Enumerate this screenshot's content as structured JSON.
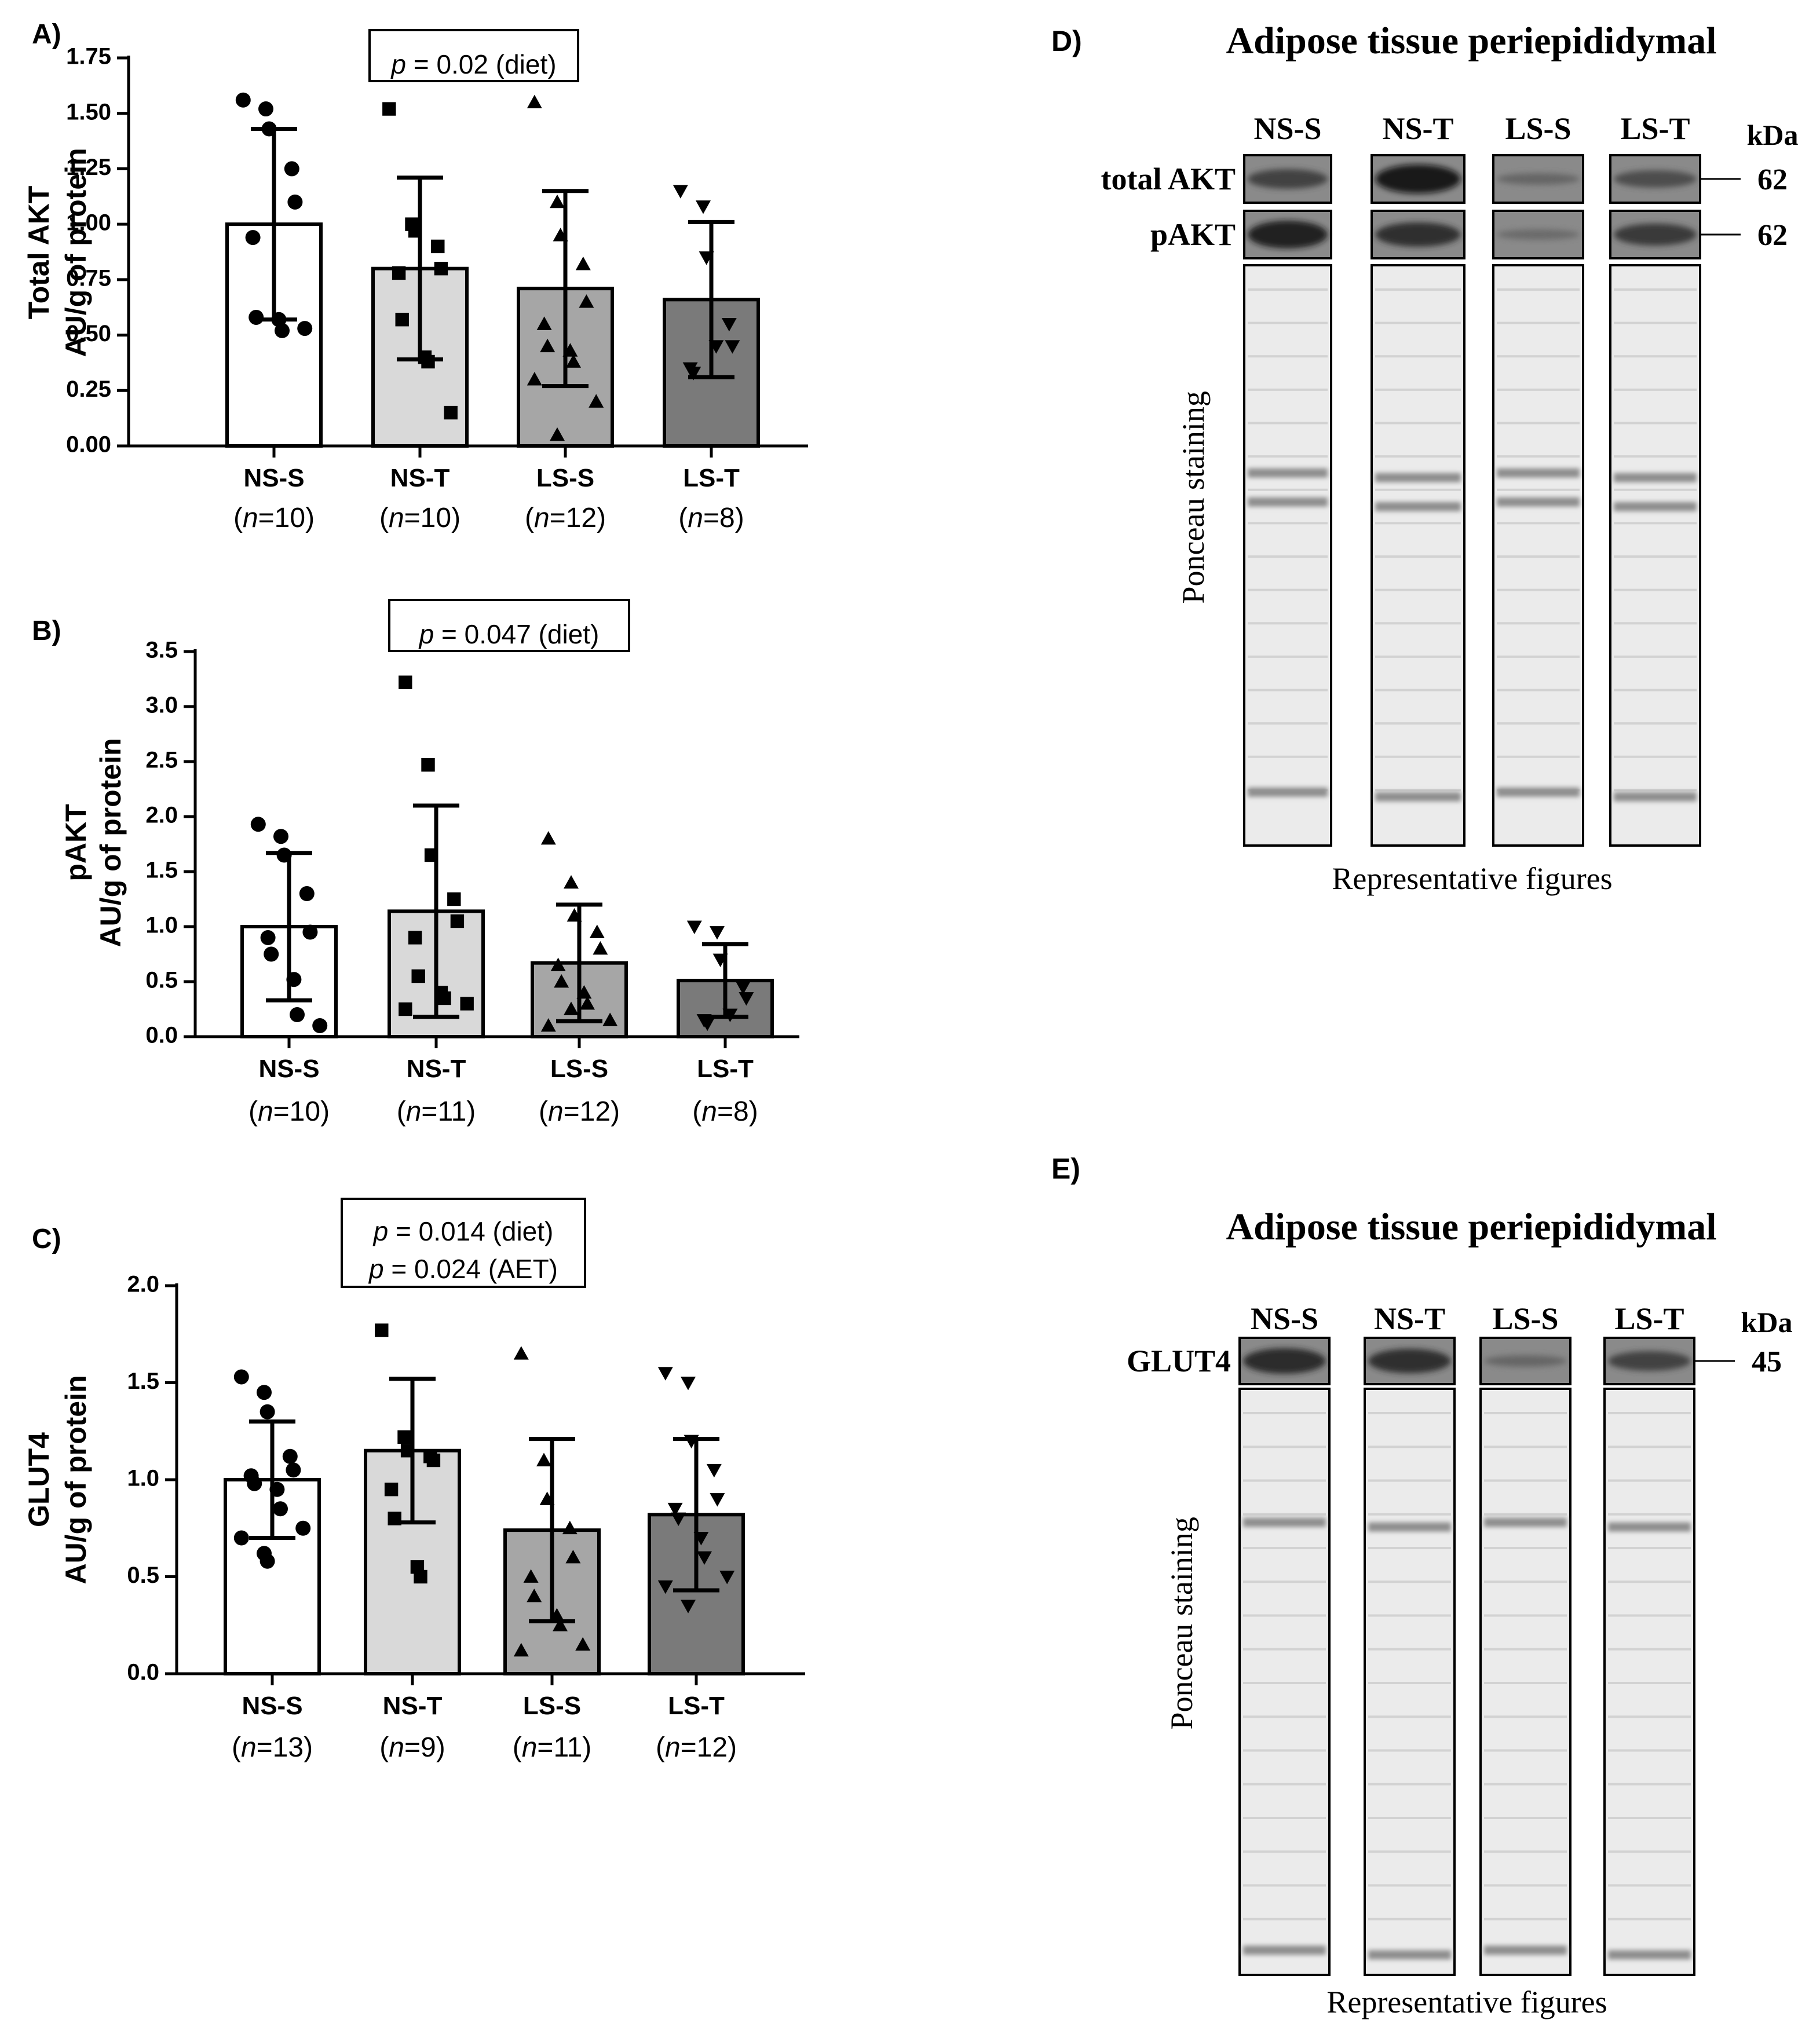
{
  "bar_charts": [
    {
      "panel_label": "A)",
      "stat_lines": [
        {
          "p": "p",
          "rest": " = 0.02 (diet)"
        }
      ],
      "ylabel_line1": "Total AKT",
      "ylabel_line2": "AU/g of protein",
      "ytick_labels": [
        "0.00",
        "0.25",
        "0.50",
        "0.75",
        "1.00",
        "1.25",
        "1.50",
        "1.75"
      ]
    },
    {
      "panel_label": "B)",
      "stat_lines": [
        {
          "p": "p",
          "rest": " = 0.047 (diet)"
        }
      ],
      "ylabel_line1": "pAKT",
      "ylabel_line2": "AU/g of protein",
      "ytick_labels": [
        "0.0",
        "0.5",
        "1.0",
        "1.5",
        "2.0",
        "2.5",
        "3.0",
        "3.5"
      ]
    },
    {
      "panel_label": "C)",
      "stat_lines": [
        {
          "p": "p",
          "rest": " = 0.014 (diet)"
        },
        {
          "p": "p",
          "rest": " = 0.024 (AET)"
        }
      ],
      "ylabel_line1": "GLUT4",
      "ylabel_line2": "AU/g of protein",
      "ytick_labels": [
        "0.0",
        "0.5",
        "1.0",
        "1.5",
        "2.0"
      ]
    }
  ],
  "chart_data": [
    {
      "type": "bar",
      "title": "Total AKT",
      "ylabel": "Total AKT AU/g of protein",
      "ylim": [
        0,
        1.75
      ],
      "yticks": [
        0,
        0.25,
        0.5,
        0.75,
        1.0,
        1.25,
        1.5,
        1.75
      ],
      "categories": [
        "NS-S",
        "NS-T",
        "LS-S",
        "LS-T"
      ],
      "n_labels": [
        {
          "open": "(",
          "n": "n",
          "rest": "=10)"
        },
        {
          "open": "(",
          "n": "n",
          "rest": "=10)"
        },
        {
          "open": "(",
          "n": "n",
          "rest": "=12)"
        },
        {
          "open": "(",
          "n": "n",
          "rest": "=8)"
        }
      ],
      "bar_fill": [
        "#ffffff",
        "#d9d9d9",
        "#a6a6a6",
        "#7a7a7a"
      ],
      "markers": [
        "circle",
        "square",
        "triangle",
        "triangle-down"
      ],
      "means": [
        1.0,
        0.8,
        0.71,
        0.66
      ],
      "sd": [
        0.43,
        0.41,
        0.44,
        0.35
      ],
      "points": [
        [
          1.56,
          1.52,
          1.43,
          1.25,
          1.1,
          0.94,
          0.58,
          0.57,
          0.52,
          0.53
        ],
        [
          1.52,
          1.0,
          0.97,
          0.9,
          0.8,
          0.78,
          0.57,
          0.4,
          0.38,
          0.15
        ],
        [
          1.55,
          1.1,
          0.95,
          0.82,
          0.65,
          0.55,
          0.45,
          0.43,
          0.38,
          0.2,
          0.3,
          0.05
        ],
        [
          1.15,
          1.08,
          0.85,
          0.55,
          0.45,
          0.35,
          0.33,
          0.45
        ]
      ]
    },
    {
      "type": "bar",
      "title": "pAKT",
      "ylabel": "pAKT AU/g of protein",
      "ylim": [
        0,
        3.5
      ],
      "yticks": [
        0,
        0.5,
        1.0,
        1.5,
        2.0,
        2.5,
        3.0,
        3.5
      ],
      "categories": [
        "NS-S",
        "NS-T",
        "LS-S",
        "LS-T"
      ],
      "n_labels": [
        {
          "open": "(",
          "n": "n",
          "rest": "=10)"
        },
        {
          "open": "(",
          "n": "n",
          "rest": "=11)"
        },
        {
          "open": "(",
          "n": "n",
          "rest": "=12)"
        },
        {
          "open": "(",
          "n": "n",
          "rest": "=8)"
        }
      ],
      "bar_fill": [
        "#ffffff",
        "#d9d9d9",
        "#a6a6a6",
        "#7a7a7a"
      ],
      "markers": [
        "circle",
        "square",
        "triangle",
        "triangle-down"
      ],
      "means": [
        1.0,
        1.14,
        0.67,
        0.51
      ],
      "sd": [
        0.67,
        0.96,
        0.53,
        0.33
      ],
      "points": [
        [
          1.93,
          1.82,
          1.65,
          1.3,
          0.95,
          0.9,
          0.75,
          0.52,
          0.2,
          0.1
        ],
        [
          3.22,
          2.47,
          1.65,
          1.25,
          1.05,
          0.9,
          0.55,
          0.4,
          0.35,
          0.3,
          0.25
        ],
        [
          1.8,
          1.4,
          1.1,
          0.95,
          0.8,
          0.65,
          0.5,
          0.4,
          0.3,
          0.15,
          0.1,
          0.25
        ],
        [
          1.0,
          0.95,
          0.7,
          0.45,
          0.35,
          0.15,
          0.12,
          0.2
        ]
      ]
    },
    {
      "type": "bar",
      "title": "GLUT4",
      "ylabel": "GLUT4 AU/g of protein",
      "ylim": [
        0,
        2.0
      ],
      "yticks": [
        0,
        0.5,
        1.0,
        1.5,
        2.0
      ],
      "categories": [
        "NS-S",
        "NS-T",
        "LS-S",
        "LS-T"
      ],
      "n_labels": [
        {
          "open": "(",
          "n": "n",
          "rest": "=13)"
        },
        {
          "open": "(",
          "n": "n",
          "rest": "=9)"
        },
        {
          "open": "(",
          "n": "n",
          "rest": "=11)"
        },
        {
          "open": "(",
          "n": "n",
          "rest": "=12)"
        }
      ],
      "bar_fill": [
        "#ffffff",
        "#d9d9d9",
        "#a6a6a6",
        "#7a7a7a"
      ],
      "markers": [
        "circle",
        "square",
        "triangle",
        "triangle-down"
      ],
      "means": [
        1.0,
        1.15,
        0.74,
        0.82
      ],
      "sd": [
        0.3,
        0.37,
        0.47,
        0.39
      ],
      "points": [
        [
          1.53,
          1.45,
          1.35,
          1.12,
          1.05,
          1.02,
          0.98,
          0.95,
          0.85,
          0.75,
          0.7,
          0.62,
          0.58
        ],
        [
          1.77,
          1.22,
          1.15,
          1.12,
          1.1,
          0.95,
          0.8,
          0.55,
          0.5
        ],
        [
          1.65,
          1.1,
          0.9,
          0.75,
          0.6,
          0.5,
          0.4,
          0.3,
          0.25,
          0.15,
          0.12
        ],
        [
          1.55,
          1.5,
          1.2,
          1.05,
          0.9,
          0.85,
          0.8,
          0.7,
          0.6,
          0.5,
          0.45,
          0.35
        ]
      ]
    }
  ],
  "blot_panels": [
    {
      "panel_label": "D)",
      "title": "Adipose tissue periepididymal",
      "lane_labels": [
        "NS-S",
        "NS-T",
        "LS-S",
        "LS-T"
      ],
      "kda_label": "kDa",
      "rows": [
        {
          "label": "total AKT",
          "kda": "62",
          "intensities": [
            0.55,
            0.95,
            0.2,
            0.45
          ]
        },
        {
          "label": "pAKT",
          "kda": "62",
          "intensities": [
            0.9,
            0.75,
            0.15,
            0.65
          ]
        }
      ],
      "stain_label": "Ponceau staining",
      "footer": "Representative figures"
    },
    {
      "panel_label": "E)",
      "title": "Adipose tissue periepididymal",
      "lane_labels": [
        "NS-S",
        "NS-T",
        "LS-S",
        "LS-T"
      ],
      "kda_label": "kDa",
      "rows": [
        {
          "label": "GLUT4",
          "kda": "45",
          "intensities": [
            0.8,
            0.75,
            0.2,
            0.55
          ]
        }
      ],
      "stain_label": "Ponceau staining",
      "footer": "Representative figures"
    }
  ]
}
